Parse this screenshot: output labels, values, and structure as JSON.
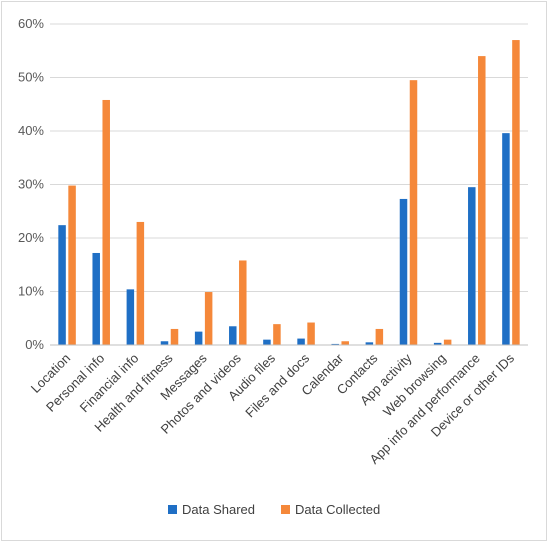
{
  "chart_data": {
    "type": "bar",
    "title": "",
    "xlabel": "",
    "ylabel": "",
    "ylim": [
      0,
      60
    ],
    "y_ticks": [
      "0%",
      "10%",
      "20%",
      "30%",
      "40%",
      "50%",
      "60%"
    ],
    "y_tick_values": [
      0,
      10,
      20,
      30,
      40,
      50,
      60
    ],
    "grid": true,
    "legend_position": "bottom",
    "categories": [
      "Location",
      "Personal info",
      "Financial info",
      "Health and fitness",
      "Messages",
      "Photos and videos",
      "Audio files",
      "Files and docs",
      "Calendar",
      "Contacts",
      "App activity",
      "Web browsing",
      "App info and performance",
      "Device or other IDs"
    ],
    "series": [
      {
        "name": "Data Shared",
        "color": "#1f6fc5",
        "values": [
          22.4,
          17.2,
          10.4,
          0.7,
          2.5,
          3.5,
          1.0,
          1.2,
          0.2,
          0.5,
          27.3,
          0.4,
          29.5,
          39.6
        ]
      },
      {
        "name": "Data Collected",
        "color": "#f5883a",
        "values": [
          29.8,
          45.8,
          23.0,
          3.0,
          9.9,
          15.8,
          3.9,
          4.2,
          0.7,
          3.0,
          49.5,
          1.0,
          54.0,
          57.0
        ]
      }
    ]
  }
}
